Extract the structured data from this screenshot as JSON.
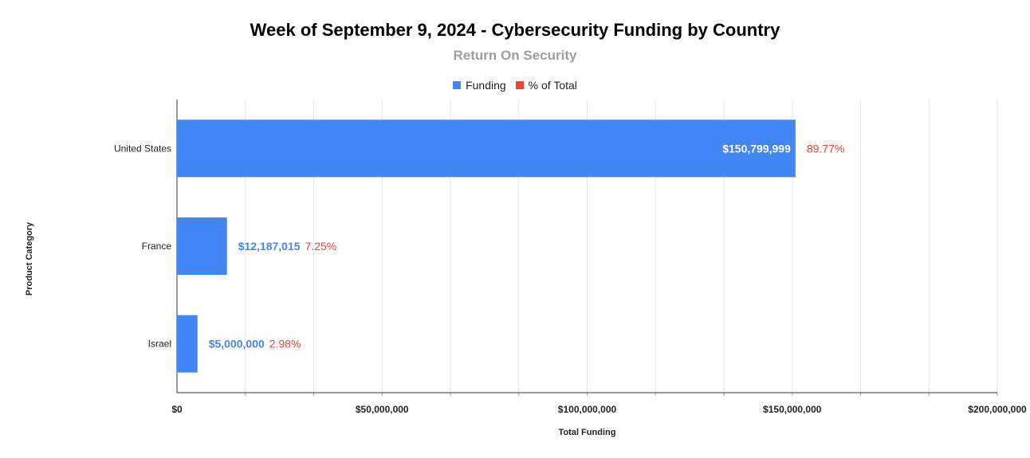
{
  "chart_data": {
    "type": "bar",
    "orientation": "horizontal",
    "title": "Week of September 9, 2024 - Cybersecurity Funding by Country",
    "subtitle": "Return On Security",
    "xlabel": "Total Funding",
    "ylabel": "Product Category",
    "categories": [
      "United States",
      "France",
      "Israel"
    ],
    "series": [
      {
        "name": "Funding",
        "color": "#4285f4",
        "values": [
          150799999,
          12187015,
          5000000
        ],
        "labels": [
          "$150,799,999",
          "$12,187,015",
          "$5,000,000"
        ]
      },
      {
        "name": "% of Total",
        "color": "#ea4335",
        "values": [
          89.77,
          7.25,
          2.98
        ],
        "labels": [
          "89.77%",
          "7.25%",
          "2.98%"
        ]
      }
    ],
    "xlim": [
      0,
      200000000
    ],
    "x_ticks": [
      0,
      50000000,
      100000000,
      150000000,
      200000000
    ],
    "x_tick_labels": [
      "$0",
      "$50,000,000",
      "$100,000,000",
      "$150,000,000",
      "$200,000,000"
    ],
    "grid": true,
    "legend_position": "top-center"
  }
}
